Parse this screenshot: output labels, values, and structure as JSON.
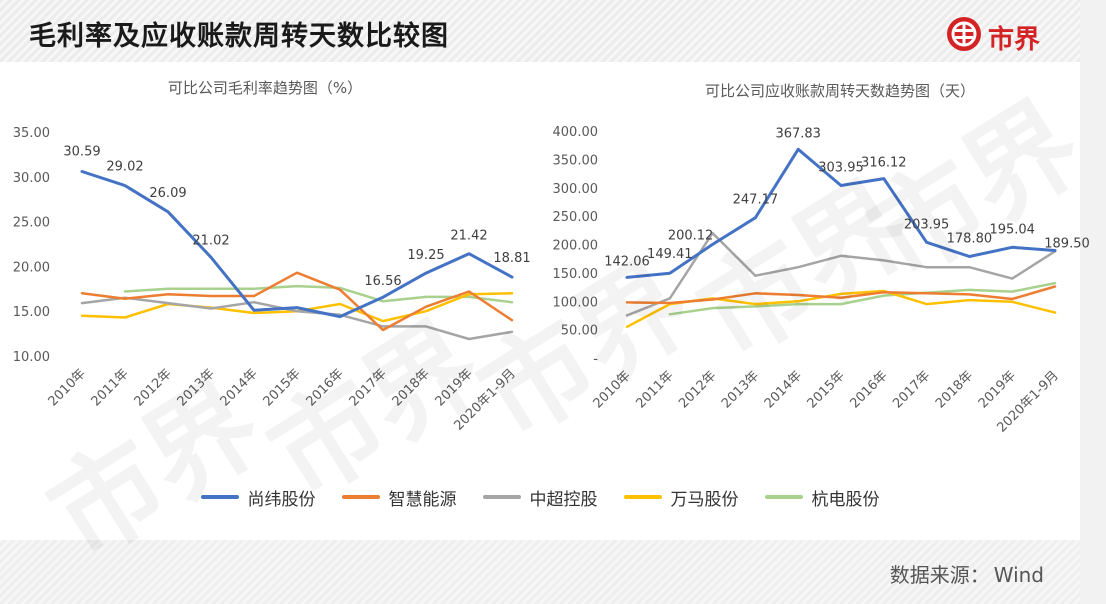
{
  "page": {
    "title": "毛利率及应收账款周转天数比较图",
    "brand_name": "市界",
    "source_label": "数据来源：",
    "source_name": "Wind",
    "watermark": "市界",
    "colors": {
      "brand": "#d42325",
      "axis_text": "#595959",
      "label_text": "#404040",
      "grid": "#d9d9d9"
    }
  },
  "legend": [
    {
      "name": "尚纬股份",
      "color": "#4472c4"
    },
    {
      "name": "智慧能源",
      "color": "#ed7d31"
    },
    {
      "name": "中超控股",
      "color": "#a5a5a5"
    },
    {
      "name": "万马股份",
      "color": "#ffc000"
    },
    {
      "name": "杭电股份",
      "color": "#a9d18e"
    }
  ],
  "chart_data": [
    {
      "type": "line",
      "title": "可比公司毛利率趋势图（%）",
      "categories": [
        "2010年",
        "2011年",
        "2012年",
        "2013年",
        "2014年",
        "2015年",
        "2016年",
        "2017年",
        "2018年",
        "2019年",
        "2020年1-9月"
      ],
      "ylim": [
        10,
        35
      ],
      "yticks": [
        10,
        15,
        20,
        25,
        30,
        35
      ],
      "ytick_labels": [
        "10.00",
        "15.00",
        "20.00",
        "25.00",
        "30.00",
        "35.00"
      ],
      "grid": false,
      "legend": "bottom",
      "series": [
        {
          "name": "尚纬股份",
          "color": "#4472c4",
          "values": [
            30.59,
            29.02,
            26.09,
            21.02,
            15.1,
            15.4,
            14.4,
            16.56,
            19.25,
            21.42,
            18.81
          ],
          "labels": [
            "30.59",
            "29.02",
            "26.09",
            "21.02",
            "",
            "",
            "",
            "16.56",
            "19.25",
            "21.42",
            "18.81"
          ]
        },
        {
          "name": "智慧能源",
          "color": "#ed7d31",
          "values": [
            17.0,
            16.4,
            16.9,
            16.7,
            16.7,
            19.3,
            17.4,
            12.9,
            15.5,
            17.2,
            14.0
          ]
        },
        {
          "name": "中超控股",
          "color": "#a5a5a5",
          "values": [
            15.9,
            16.5,
            15.9,
            15.3,
            16.0,
            15.0,
            14.6,
            13.3,
            13.3,
            11.9,
            12.7
          ]
        },
        {
          "name": "万马股份",
          "color": "#ffc000",
          "values": [
            14.5,
            14.3,
            15.8,
            15.4,
            14.8,
            15.0,
            15.8,
            13.9,
            15.0,
            16.9,
            17.0
          ]
        },
        {
          "name": "杭电股份",
          "color": "#a9d18e",
          "values": [
            null,
            17.2,
            17.5,
            17.5,
            17.5,
            17.8,
            17.6,
            16.1,
            16.6,
            16.6,
            16.0
          ]
        }
      ]
    },
    {
      "type": "line",
      "title": "可比公司应收账款周转天数趋势图（天）",
      "categories": [
        "2010年",
        "2011年",
        "2012年",
        "2013年",
        "2014年",
        "2015年",
        "2016年",
        "2017年",
        "2018年",
        "2019年",
        "2020年1-9月"
      ],
      "ylim": [
        0,
        400
      ],
      "yticks": [
        0,
        50,
        100,
        150,
        200,
        250,
        300,
        350,
        400
      ],
      "ytick_labels": [
        "-",
        "50.00",
        "100.00",
        "150.00",
        "200.00",
        "250.00",
        "300.00",
        "350.00",
        "400.00"
      ],
      "grid": false,
      "legend": "bottom",
      "series": [
        {
          "name": "尚纬股份",
          "color": "#4472c4",
          "values": [
            142.06,
            149.41,
            200.12,
            247.17,
            367.83,
            303.95,
            316.12,
            203.95,
            178.8,
            195.04,
            189.5
          ],
          "labels": [
            "142.06",
            "149.41",
            "200.12",
            "247.17",
            "367.83",
            "303.95",
            "316.12",
            "203.95",
            "178.80",
            "195.04",
            "189.50"
          ]
        },
        {
          "name": "智慧能源",
          "color": "#ed7d31",
          "values": [
            98,
            97,
            103,
            114,
            111,
            106,
            116,
            114,
            112,
            104,
            126
          ]
        },
        {
          "name": "中超控股",
          "color": "#a5a5a5",
          "values": [
            75,
            105,
            220,
            145,
            160,
            180,
            172,
            160,
            160,
            140,
            188
          ]
        },
        {
          "name": "万马股份",
          "color": "#ffc000",
          "values": [
            55,
            95,
            105,
            95,
            100,
            113,
            118,
            95,
            102,
            99,
            80
          ]
        },
        {
          "name": "杭电股份",
          "color": "#a9d18e",
          "values": [
            null,
            77,
            88,
            91,
            95,
            95,
            110,
            115,
            120,
            117,
            132
          ]
        }
      ]
    }
  ]
}
